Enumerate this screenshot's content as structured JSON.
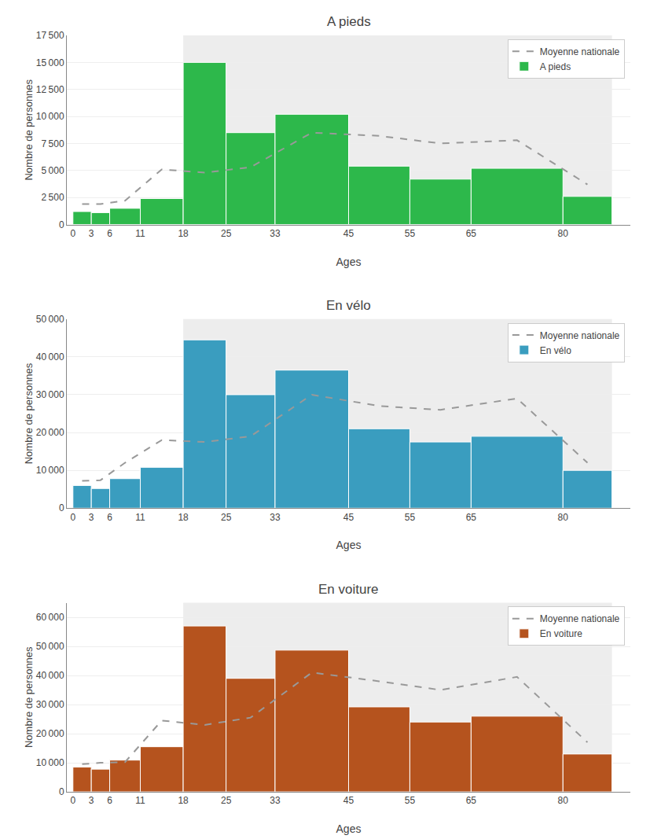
{
  "chart_data": [
    {
      "type": "bar",
      "title": "A pieds",
      "xlabel": "Ages",
      "ylabel": "Nombre de personnes",
      "bins": [
        0,
        3,
        6,
        11,
        18,
        25,
        33,
        45,
        55,
        65,
        80,
        88
      ],
      "series": [
        {
          "name": "A pieds",
          "type": "bar",
          "color": "#2db84b",
          "values": [
            1200,
            1100,
            1500,
            2400,
            15000,
            8500,
            10200,
            5400,
            4200,
            5200,
            2600
          ]
        },
        {
          "name": "Moyenne nationale",
          "type": "line",
          "color": "#999999",
          "line_style": "dashed",
          "x": [
            1.5,
            4.5,
            8.5,
            14.5,
            21.5,
            29.0,
            39.0,
            50.0,
            60.0,
            72.5,
            84.0
          ],
          "values": [
            1900,
            1900,
            2200,
            5100,
            4800,
            5300,
            8500,
            8200,
            7500,
            7800,
            3700
          ]
        }
      ],
      "shaded_range": [
        18,
        88
      ],
      "xlim": [
        -1,
        91
      ],
      "xticks": [
        0,
        3,
        6,
        11,
        18,
        25,
        33,
        45,
        55,
        65,
        80
      ],
      "ylim": [
        0,
        17500
      ],
      "yticks": [
        0,
        {
          "value": 2500,
          "label": "2 500"
        },
        {
          "value": 5000,
          "label": "5 000"
        },
        {
          "value": 7500,
          "label": "7 500"
        },
        {
          "value": 10000,
          "label": "10 000"
        },
        {
          "value": 12500,
          "label": "12 500"
        },
        {
          "value": 15000,
          "label": "15 000"
        },
        {
          "value": 17500,
          "label": "17 500"
        }
      ],
      "grid": true,
      "legend": "upper right"
    },
    {
      "type": "bar",
      "title": "En vélo",
      "xlabel": "Ages",
      "ylabel": "Nombre de personnes",
      "bins": [
        0,
        3,
        6,
        11,
        18,
        25,
        33,
        45,
        55,
        65,
        80,
        88
      ],
      "series": [
        {
          "name": "En vélo",
          "type": "bar",
          "color": "#3a9dbf",
          "values": [
            6000,
            5200,
            7800,
            10800,
            44500,
            30000,
            36500,
            21000,
            17500,
            19000,
            10000
          ]
        },
        {
          "name": "Moyenne nationale",
          "type": "line",
          "color": "#999999",
          "line_style": "dashed",
          "x": [
            1.5,
            4.5,
            8.5,
            14.5,
            21.5,
            29.0,
            39.0,
            50.0,
            60.0,
            72.5,
            84.0
          ],
          "values": [
            7200,
            7400,
            12000,
            18000,
            17500,
            19000,
            30000,
            27000,
            26000,
            29000,
            12000
          ]
        }
      ],
      "shaded_range": [
        18,
        88
      ],
      "xlim": [
        -1,
        91
      ],
      "xticks": [
        0,
        3,
        6,
        11,
        18,
        25,
        33,
        45,
        55,
        65,
        80
      ],
      "ylim": [
        0,
        50000
      ],
      "yticks": [
        0,
        {
          "value": 10000,
          "label": "10 000"
        },
        {
          "value": 20000,
          "label": "20 000"
        },
        {
          "value": 30000,
          "label": "30 000"
        },
        {
          "value": 40000,
          "label": "40 000"
        },
        {
          "value": 50000,
          "label": "50 000"
        }
      ],
      "grid": true,
      "legend": "upper right"
    },
    {
      "type": "bar",
      "title": "En voiture",
      "xlabel": "Ages",
      "ylabel": "Nombre de personnes",
      "bins": [
        0,
        3,
        6,
        11,
        18,
        25,
        33,
        45,
        55,
        65,
        80,
        88
      ],
      "series": [
        {
          "name": "En voiture",
          "type": "bar",
          "color": "#b5531e",
          "values": [
            8500,
            7800,
            10900,
            15500,
            57000,
            39000,
            48700,
            29200,
            24000,
            26000,
            13000
          ]
        },
        {
          "name": "Moyenne nationale",
          "type": "line",
          "color": "#999999",
          "line_style": "dashed",
          "x": [
            1.5,
            4.5,
            8.5,
            14.5,
            21.5,
            29.0,
            39.0,
            50.0,
            60.0,
            72.5,
            84.0
          ],
          "values": [
            9500,
            10000,
            10200,
            24500,
            23000,
            25500,
            41000,
            38000,
            35000,
            39500,
            17000
          ]
        }
      ],
      "shaded_range": [
        18,
        88
      ],
      "xlim": [
        -1,
        91
      ],
      "xticks": [
        0,
        3,
        6,
        11,
        18,
        25,
        33,
        45,
        55,
        65,
        80
      ],
      "ylim": [
        0,
        65000
      ],
      "yticks": [
        0,
        {
          "value": 10000,
          "label": "10 000"
        },
        {
          "value": 20000,
          "label": "20 000"
        },
        {
          "value": 30000,
          "label": "30 000"
        },
        {
          "value": 40000,
          "label": "40 000"
        },
        {
          "value": 50000,
          "label": "50 000"
        },
        {
          "value": 60000,
          "label": "60 000"
        }
      ],
      "grid": true,
      "legend": "upper right"
    }
  ]
}
